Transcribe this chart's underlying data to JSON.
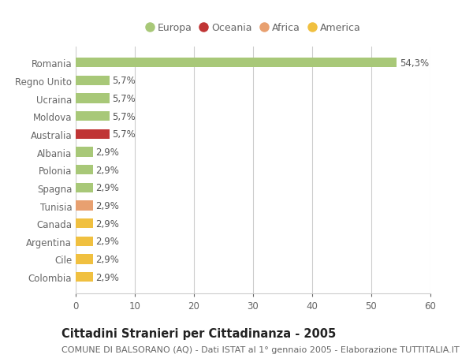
{
  "categories": [
    "Colombia",
    "Cile",
    "Argentina",
    "Canada",
    "Tunisia",
    "Spagna",
    "Polonia",
    "Albania",
    "Australia",
    "Moldova",
    "Ucraina",
    "Regno Unito",
    "Romania"
  ],
  "values": [
    2.9,
    2.9,
    2.9,
    2.9,
    2.9,
    2.9,
    2.9,
    2.9,
    5.7,
    5.7,
    5.7,
    5.7,
    54.3
  ],
  "bar_colors": [
    "#f0c040",
    "#f0c040",
    "#f0c040",
    "#f0c040",
    "#e8a070",
    "#a8c878",
    "#a8c878",
    "#a8c878",
    "#c03535",
    "#a8c878",
    "#a8c878",
    "#a8c878",
    "#a8c878"
  ],
  "bar_labels": [
    "2,9%",
    "2,9%",
    "2,9%",
    "2,9%",
    "2,9%",
    "2,9%",
    "2,9%",
    "2,9%",
    "5,7%",
    "5,7%",
    "5,7%",
    "5,7%",
    "54,3%"
  ],
  "xlim": [
    0,
    60
  ],
  "xticks": [
    0,
    10,
    20,
    30,
    40,
    50,
    60
  ],
  "legend_labels": [
    "Europa",
    "Oceania",
    "Africa",
    "America"
  ],
  "legend_colors": [
    "#a8c878",
    "#c03535",
    "#e8a070",
    "#f0c040"
  ],
  "title": "Cittadini Stranieri per Cittadinanza - 2005",
  "subtitle": "COMUNE DI BALSORANO (AQ) - Dati ISTAT al 1° gennaio 2005 - Elaborazione TUTTITALIA.IT",
  "background_color": "#ffffff",
  "grid_color": "#cccccc",
  "bar_height": 0.55,
  "label_fontsize": 8.5,
  "ytick_fontsize": 8.5,
  "xtick_fontsize": 8.5,
  "title_fontsize": 10.5,
  "subtitle_fontsize": 8
}
